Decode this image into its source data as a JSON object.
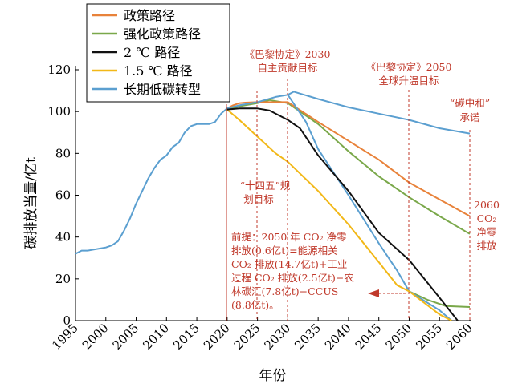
{
  "chart_data": {
    "type": "line",
    "xlabel": "年份",
    "ylabel": "碳排放当量/亿t",
    "xlim": [
      1995,
      2060
    ],
    "ylim": [
      0,
      120
    ],
    "x_ticks": [
      "1995",
      "2000",
      "2005",
      "2010",
      "2015",
      "2020",
      "2025",
      "2030",
      "2035",
      "2040",
      "2045",
      "2050",
      "2055",
      "2060"
    ],
    "y_ticks": [
      "0",
      "20",
      "40",
      "60",
      "80",
      "100",
      "120"
    ],
    "legend_position": "top-left",
    "series": [
      {
        "name": "政策路径",
        "color": "#e8823a",
        "points": [
          [
            2020,
            101.5
          ],
          [
            2021,
            103
          ],
          [
            2022,
            104
          ],
          [
            2023,
            104.3
          ],
          [
            2025,
            104.5
          ],
          [
            2030,
            104.5
          ],
          [
            2035,
            95
          ],
          [
            2040,
            86
          ],
          [
            2045,
            77
          ],
          [
            2050,
            66
          ],
          [
            2055,
            58
          ],
          [
            2060,
            50
          ]
        ]
      },
      {
        "name": "强化政策路径",
        "color": "#7aa84a",
        "points": [
          [
            2020,
            101
          ],
          [
            2022,
            102.5
          ],
          [
            2025,
            104
          ],
          [
            2027,
            105.5
          ],
          [
            2030,
            104
          ],
          [
            2035,
            94
          ],
          [
            2040,
            81
          ],
          [
            2045,
            69
          ],
          [
            2050,
            59
          ],
          [
            2055,
            50
          ],
          [
            2060,
            41.5
          ]
        ]
      },
      {
        "name": "2 ℃ 路径",
        "color": "#111111",
        "points": [
          [
            2020,
            101
          ],
          [
            2022,
            101.5
          ],
          [
            2025,
            101.5
          ],
          [
            2027,
            100.5
          ],
          [
            2030,
            96
          ],
          [
            2032,
            92
          ],
          [
            2035,
            79
          ],
          [
            2040,
            62
          ],
          [
            2045,
            42
          ],
          [
            2050,
            29
          ],
          [
            2055,
            11
          ],
          [
            2058,
            0
          ]
        ]
      },
      {
        "name": "1.5 ℃ 路径",
        "color": "#f2b818",
        "points": [
          [
            2020,
            101
          ],
          [
            2022,
            96
          ],
          [
            2025,
            88
          ],
          [
            2028,
            80
          ],
          [
            2030,
            76
          ],
          [
            2035,
            62
          ],
          [
            2040,
            46
          ],
          [
            2045,
            28
          ],
          [
            2048,
            17
          ],
          [
            2050,
            14
          ],
          [
            2055,
            3
          ],
          [
            2057,
            0
          ]
        ]
      },
      {
        "name": "长期低碳转型",
        "color": "#5b9fd0",
        "points": [
          [
            1995,
            32
          ],
          [
            1996,
            33.5
          ],
          [
            1997,
            33.5
          ],
          [
            1998,
            34
          ],
          [
            1999,
            34.5
          ],
          [
            2000,
            35
          ],
          [
            2001,
            36
          ],
          [
            2002,
            38
          ],
          [
            2003,
            43
          ],
          [
            2004,
            49
          ],
          [
            2005,
            56
          ],
          [
            2006,
            62
          ],
          [
            2007,
            68
          ],
          [
            2008,
            73
          ],
          [
            2009,
            77
          ],
          [
            2010,
            79
          ],
          [
            2011,
            83
          ],
          [
            2012,
            85
          ],
          [
            2013,
            90
          ],
          [
            2014,
            93
          ],
          [
            2015,
            94
          ],
          [
            2016,
            94
          ],
          [
            2017,
            94
          ],
          [
            2018,
            95
          ],
          [
            2019,
            99
          ],
          [
            2020,
            101.5
          ],
          [
            2022,
            103
          ],
          [
            2025,
            104.5
          ],
          [
            2028,
            107
          ],
          [
            2030,
            108
          ],
          [
            2033,
            95
          ],
          [
            2035,
            82
          ],
          [
            2040,
            60
          ],
          [
            2045,
            37
          ],
          [
            2048,
            24
          ],
          [
            2050,
            14
          ],
          [
            2055,
            5
          ],
          [
            2057,
            0
          ]
        ]
      },
      {
        "name": "",
        "color": "#7aa84a",
        "points": [
          [
            2050,
            14
          ],
          [
            2053,
            10
          ],
          [
            2056,
            7
          ],
          [
            2060,
            6.5
          ]
        ]
      },
      {
        "name": "",
        "color": "#5b9fd0",
        "points": [
          [
            2030,
            108
          ],
          [
            2031,
            109.5
          ],
          [
            2035,
            106
          ],
          [
            2040,
            102
          ],
          [
            2045,
            99
          ],
          [
            2050,
            96
          ],
          [
            2055,
            92
          ],
          [
            2060,
            89.5
          ]
        ]
      }
    ]
  },
  "annotations": {
    "paris2030_line1": "《巴黎协定》2030",
    "paris2030_line2": "自主贡献目标",
    "paris2050_line1": "《巴黎协定》2050",
    "paris2050_line2": "全球升温目标",
    "carbon_neutral_line1": "“碳中和”",
    "carbon_neutral_line2": "承诺",
    "fyp_line1": "“十四五”规",
    "fyp_line2": "划目标",
    "neutral2060_line1": "2060",
    "neutral2060_line2": "CO₂",
    "neutral2060_line3": "净零",
    "neutral2060_line4": "排放",
    "premise_line1": "前提：2050 年 CO₂ 净零",
    "premise_line2": "排放(0.6亿t)=能源相关",
    "premise_line3": "CO₂ 排放(14.7亿t)+工业",
    "premise_line4": "过程 CO₂ 排放(2.5亿t)−农",
    "premise_line5": "林碳汇(7.8亿t)−CCUS",
    "premise_line6": "(8.8亿t)。"
  },
  "colors": {
    "annotation": "#c0392b"
  }
}
